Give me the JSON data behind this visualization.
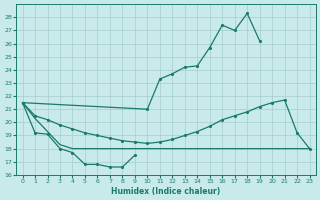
{
  "xlabel": "Humidex (Indice chaleur)",
  "x_values": [
    0,
    1,
    2,
    3,
    4,
    5,
    6,
    7,
    8,
    9,
    10,
    11,
    12,
    13,
    14,
    15,
    16,
    17,
    18,
    19,
    20,
    21,
    22,
    23
  ],
  "line_top_x": [
    0,
    10,
    11,
    12,
    13,
    14,
    15,
    16,
    17,
    18,
    19
  ],
  "line_top_y": [
    21.5,
    21.0,
    23.3,
    23.7,
    24.2,
    24.3,
    25.7,
    27.4,
    27.0,
    28.3,
    26.2
  ],
  "line_mid_x": [
    0,
    1,
    2,
    3,
    4,
    5,
    6,
    7,
    8,
    9,
    10,
    11,
    12,
    13,
    14,
    15,
    16,
    17,
    18,
    19,
    20,
    21,
    22,
    23
  ],
  "line_mid_y": [
    21.5,
    20.5,
    20.2,
    19.8,
    19.5,
    19.2,
    19.0,
    18.8,
    18.6,
    18.5,
    18.4,
    18.5,
    18.7,
    19.0,
    19.3,
    19.7,
    20.2,
    20.5,
    20.8,
    21.2,
    21.5,
    21.7,
    19.2,
    18.0
  ],
  "line_low_x": [
    0,
    1,
    2,
    3,
    4,
    5,
    6,
    7,
    8,
    9,
    10,
    11,
    12,
    13,
    14,
    15,
    16,
    17,
    18,
    19,
    20,
    21,
    22,
    23
  ],
  "line_low_y": [
    21.5,
    20.3,
    19.3,
    18.3,
    18.0,
    18.0,
    18.0,
    18.0,
    18.0,
    18.0,
    18.0,
    18.0,
    18.0,
    18.0,
    18.0,
    18.0,
    18.0,
    18.0,
    18.0,
    18.0,
    18.0,
    18.0,
    18.0,
    18.0
  ],
  "line_bot_x": [
    0,
    1,
    2,
    3,
    4,
    5,
    6,
    7,
    8,
    9
  ],
  "line_bot_y": [
    21.5,
    19.2,
    19.1,
    18.0,
    17.7,
    16.8,
    16.8,
    16.6,
    16.6,
    17.5
  ],
  "ylim": [
    16,
    29
  ],
  "xlim": [
    -0.5,
    23.5
  ],
  "yticks": [
    16,
    17,
    18,
    19,
    20,
    21,
    22,
    23,
    24,
    25,
    26,
    27,
    28
  ],
  "xticks": [
    0,
    1,
    2,
    3,
    4,
    5,
    6,
    7,
    8,
    9,
    10,
    11,
    12,
    13,
    14,
    15,
    16,
    17,
    18,
    19,
    20,
    21,
    22,
    23
  ],
  "color": "#1a7a6a",
  "bg_color": "#c8eaea",
  "grid_color": "#a8cccc"
}
